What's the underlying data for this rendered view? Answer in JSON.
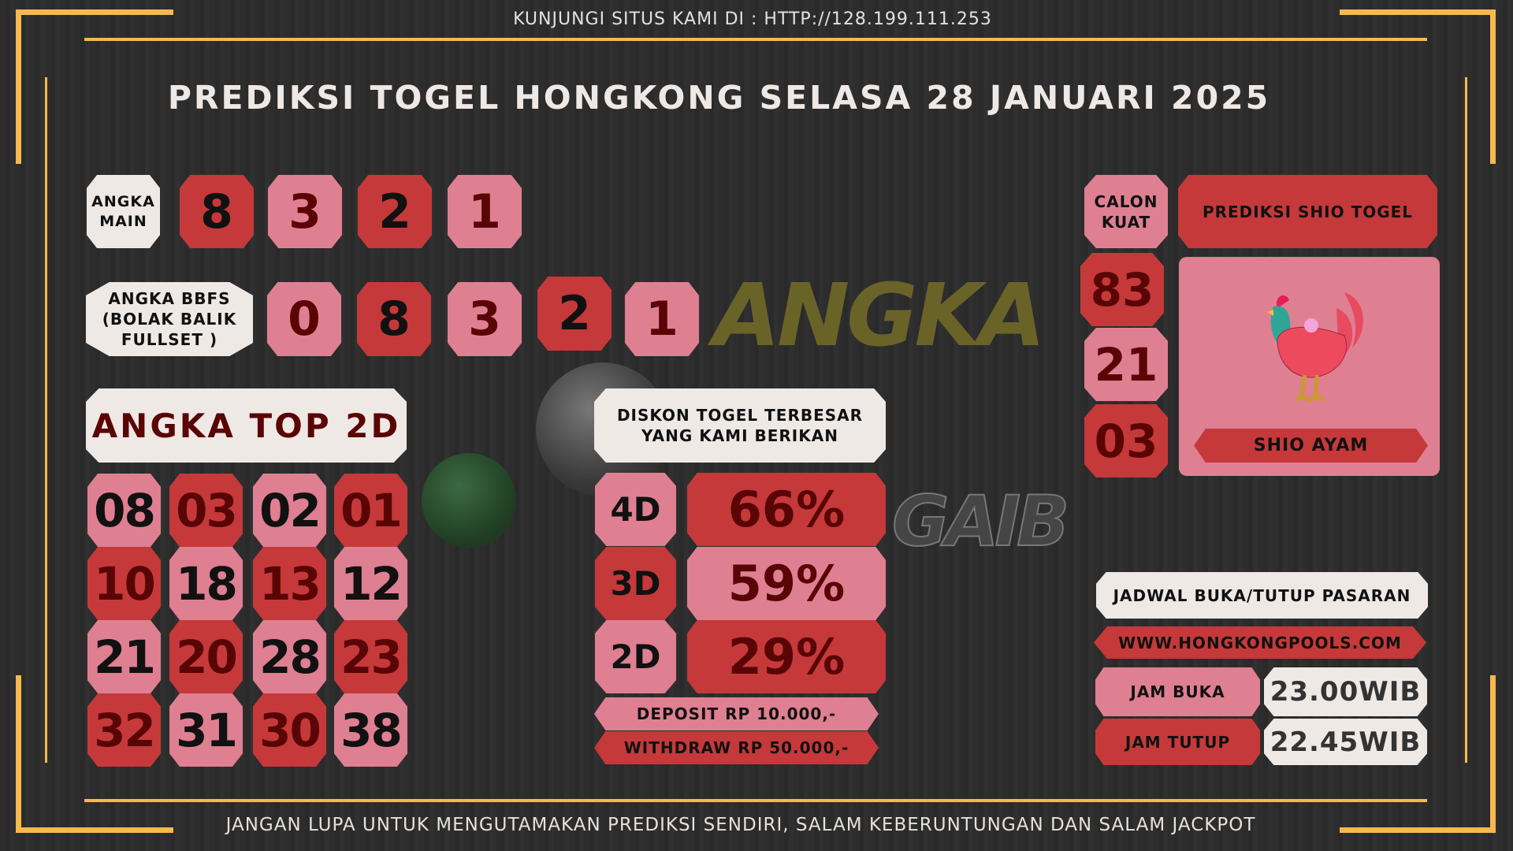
{
  "header": {
    "visit_text": "KUNJUNGI SITUS KAMI DI : HTTP://128.199.111.253",
    "title": "PREDIKSI TOGEL HONGKONG SELASA 28 JANUARI 2025"
  },
  "watermark": {
    "line1": "ANGKA",
    "line2": "GAIB"
  },
  "angka_main": {
    "label1": "ANGKA",
    "label2": "MAIN",
    "digits": [
      "8",
      "3",
      "2",
      "1"
    ]
  },
  "bbfs": {
    "label1": "ANGKA BBFS",
    "label2": "(BOLAK BALIK",
    "label3": "FULLSET )",
    "digits": [
      "0",
      "8",
      "3",
      "2",
      "1"
    ]
  },
  "top2d": {
    "label": "ANGKA TOP 2D",
    "numbers": [
      "08",
      "03",
      "02",
      "01",
      "10",
      "18",
      "13",
      "12",
      "21",
      "20",
      "28",
      "23",
      "32",
      "31",
      "30",
      "38"
    ]
  },
  "diskon": {
    "label1": "DISKON TOGEL TERBESAR",
    "label2": "YANG KAMI BERIKAN",
    "rows": [
      {
        "type": "4D",
        "value": "66%"
      },
      {
        "type": "3D",
        "value": "59%"
      },
      {
        "type": "2D",
        "value": "29%"
      }
    ],
    "deposit": "DEPOSIT RP 10.000,-",
    "withdraw": "WITHDRAW RP 50.000,-"
  },
  "calon_kuat": {
    "label1": "CALON",
    "label2": "KUAT",
    "numbers": [
      "83",
      "21",
      "03"
    ]
  },
  "shio": {
    "title": "PREDIKSI SHIO TOGEL",
    "name": "SHIO AYAM",
    "icon": "rooster-icon"
  },
  "jadwal": {
    "title": "JADWAL BUKA/TUTUP PASARAN",
    "website": "WWW.HONGKONGPOOLS.COM",
    "buka_label": "JAM BUKA",
    "buka_value": "23.00WIB",
    "tutup_label": "JAM TUTUP",
    "tutup_value": "22.45WIB"
  },
  "footer": {
    "text": "JANGAN LUPA UNTUK MENGUTAMAKAN PREDIKSI SENDIRI, SALAM KEBERUNTUNGAN DAN SALAM JACKPOT"
  },
  "colors": {
    "red": "#c5393a",
    "pink": "#df7f92",
    "white": "#efe9e6",
    "frame": "#f7b84d",
    "background": "#2c2c2c"
  }
}
